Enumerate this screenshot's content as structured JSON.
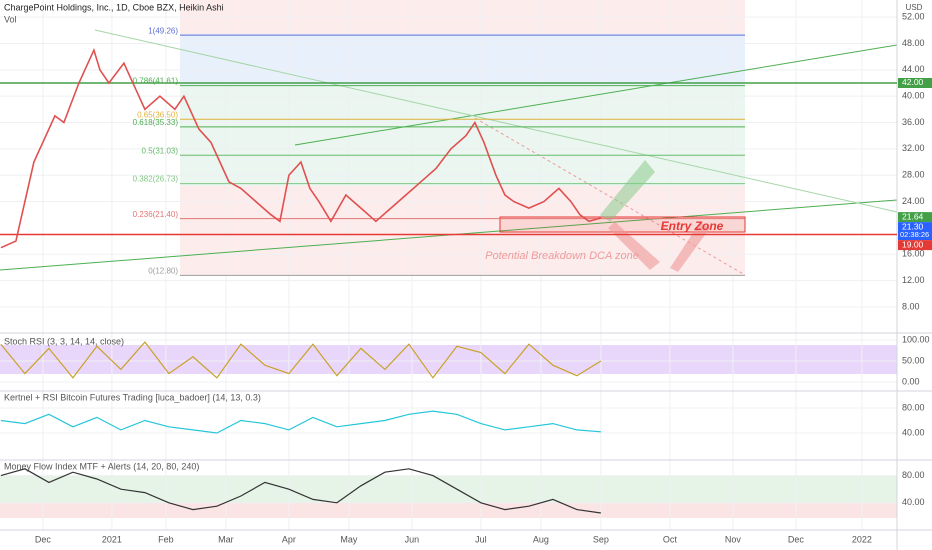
{
  "chart_data": [
    {
      "type": "line",
      "title": "ChargePoint Holdings, Inc., 1D, Cboe BZX, Heikin Ashi",
      "subtitle": "Vol",
      "unit_label": "USD",
      "color": "#e0504f",
      "x": [
        -37,
        -32,
        -29,
        -26,
        -22,
        -19,
        -16,
        -11,
        -6,
        -4,
        -1,
        4,
        8,
        11,
        16,
        21,
        24,
        29,
        33,
        36,
        39,
        43,
        48,
        53,
        56,
        59,
        63,
        66,
        69,
        73,
        78,
        83,
        88,
        93,
        98,
        103,
        108,
        113,
        118,
        121,
        124,
        128,
        131,
        134,
        139,
        144,
        149,
        153,
        156,
        159,
        163
      ],
      "values": [
        17,
        18,
        24,
        30,
        34,
        37,
        36,
        42,
        47,
        44,
        42,
        45,
        41,
        38,
        40,
        38,
        40,
        35,
        33,
        30,
        27,
        26,
        24,
        22,
        21,
        28,
        30,
        26,
        24,
        21,
        25,
        23,
        21,
        23,
        25,
        27,
        29,
        32,
        34,
        36,
        33,
        28,
        25,
        24,
        23,
        24,
        26,
        24,
        22,
        21,
        21.5
      ],
      "xlim": [
        -37.3,
        261.7
      ],
      "xticks": [
        {
          "value": -23,
          "label": "Dec"
        },
        {
          "value": 0,
          "label": "2021"
        },
        {
          "value": 18,
          "label": "Feb"
        },
        {
          "value": 38,
          "label": "Mar"
        },
        {
          "value": 59,
          "label": "Apr"
        },
        {
          "value": 79,
          "label": "May"
        },
        {
          "value": 100,
          "label": "Jun"
        },
        {
          "value": 123,
          "label": "Jul"
        },
        {
          "value": 143,
          "label": "Aug"
        },
        {
          "value": 163,
          "label": "Sep"
        },
        {
          "value": 186,
          "label": "Oct"
        },
        {
          "value": 207,
          "label": "Nov"
        },
        {
          "value": 228,
          "label": "Dec"
        },
        {
          "value": 250,
          "label": "2022"
        }
      ],
      "ylim": [
        4.5,
        54.6
      ],
      "yticks": [
        {
          "value": 52,
          "label": "52.00"
        },
        {
          "value": 48,
          "label": "48.00"
        },
        {
          "value": 44,
          "label": "44.00"
        },
        {
          "value": 40,
          "label": "40.00"
        },
        {
          "value": 36,
          "label": "36.00"
        },
        {
          "value": 32,
          "label": "32.00"
        },
        {
          "value": 28,
          "label": "28.00"
        },
        {
          "value": 24,
          "label": "24.00"
        },
        {
          "value": 16,
          "label": "16.00"
        },
        {
          "value": 12,
          "label": "12.00"
        },
        {
          "value": 8,
          "label": "8.00"
        }
      ],
      "fib_levels": [
        {
          "label": "1(49.26)",
          "value": 49.26,
          "color": "#5b6fd6"
        },
        {
          "label": "0.786(41.61)",
          "value": 41.61,
          "color": "#4caf50"
        },
        {
          "label": "0.65(36.50)",
          "value": 36.5,
          "color": "#e0b23c"
        },
        {
          "label": "0.618(35.33)",
          "value": 35.33,
          "color": "#4caf50"
        },
        {
          "label": "0.5(31.03)",
          "value": 31.03,
          "color": "#66bb6a"
        },
        {
          "label": "0.382(26.73)",
          "value": 26.73,
          "color": "#81c784"
        },
        {
          "label": "0.236(21.40)",
          "value": 21.4,
          "color": "#e57373"
        },
        {
          "label": "0(12.80)",
          "value": 12.8,
          "color": "#9e9e9e"
        }
      ],
      "price_tags": [
        {
          "label": "42.00",
          "value": 42,
          "color": "#43a047"
        },
        {
          "label": "21.64",
          "value": 21.64,
          "color": "#43a047"
        },
        {
          "label": "21.30",
          "value": 21.3,
          "color": "#2962ff",
          "sub": "02:38:26"
        },
        {
          "label": "19.00",
          "value": 19,
          "color": "#e53935"
        }
      ],
      "annotations": [
        "Entry Zone",
        "Potential Breakdown DCA zone"
      ]
    },
    {
      "type": "line",
      "title": "Stoch RSI (3, 3, 14, 14, close)",
      "color": "#c9a227",
      "x": [
        -37,
        -29,
        -21,
        -13,
        -5,
        3,
        11,
        19,
        27,
        35,
        43,
        51,
        59,
        67,
        75,
        83,
        91,
        99,
        107,
        115,
        123,
        131,
        139,
        147,
        155,
        163
      ],
      "values": [
        90,
        20,
        80,
        10,
        85,
        30,
        95,
        20,
        60,
        10,
        90,
        40,
        20,
        90,
        15,
        80,
        30,
        90,
        10,
        85,
        70,
        20,
        90,
        40,
        15,
        50
      ],
      "ylim": [
        0,
        100
      ],
      "yticks": [
        {
          "value": 100,
          "label": "100.00"
        },
        {
          "value": 50,
          "label": "50.00"
        },
        {
          "value": 0,
          "label": "0.00"
        }
      ]
    },
    {
      "type": "line",
      "title": "Kertnel + RSI Bitcoin Futures Trading [luca_badoer] (14, 13, 0.3)",
      "color": "#26c6da",
      "x": [
        -37,
        -29,
        -21,
        -13,
        -5,
        3,
        11,
        19,
        27,
        35,
        43,
        51,
        59,
        67,
        75,
        83,
        91,
        99,
        107,
        115,
        123,
        131,
        139,
        147,
        155,
        163
      ],
      "values": [
        60,
        55,
        70,
        50,
        65,
        45,
        60,
        50,
        45,
        40,
        60,
        55,
        45,
        65,
        50,
        55,
        60,
        70,
        75,
        70,
        55,
        45,
        50,
        55,
        45,
        42
      ],
      "ylim": [
        0,
        100
      ],
      "yticks": [
        {
          "value": 80,
          "label": "80.00"
        },
        {
          "value": 40,
          "label": "40.00"
        }
      ]
    },
    {
      "type": "line",
      "title": "Money Flow Index MTF + Alerts (14, 20, 80, 240)",
      "color": "#333333",
      "x": [
        -37,
        -29,
        -21,
        -13,
        -5,
        3,
        11,
        19,
        27,
        35,
        43,
        51,
        59,
        67,
        75,
        83,
        91,
        99,
        107,
        115,
        123,
        131,
        139,
        147,
        155,
        163
      ],
      "values": [
        80,
        90,
        70,
        85,
        75,
        60,
        55,
        40,
        30,
        35,
        50,
        70,
        60,
        45,
        40,
        65,
        85,
        90,
        80,
        60,
        40,
        30,
        35,
        45,
        30,
        25
      ],
      "ylim": [
        0,
        100
      ],
      "yticks": [
        {
          "value": 80,
          "label": "80.00"
        },
        {
          "value": 40,
          "label": "40.00"
        }
      ]
    }
  ]
}
